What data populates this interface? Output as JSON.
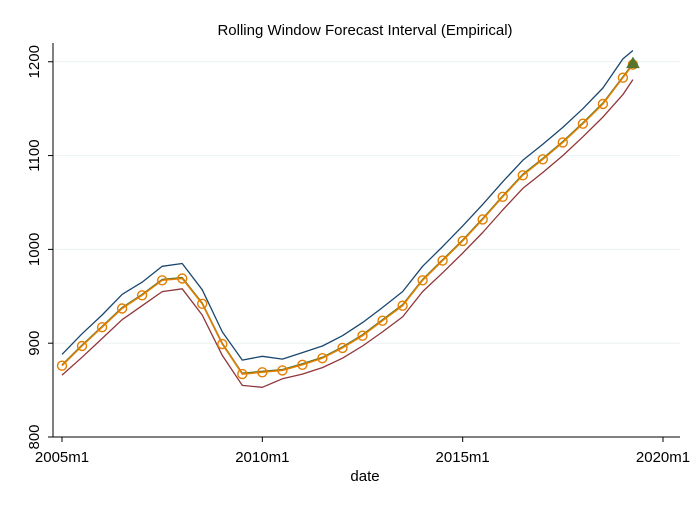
{
  "chart_data": {
    "type": "line",
    "title": "Rolling Window Forecast Interval (Empirical)",
    "xlabel": "date",
    "ylabel": "",
    "x_range": [
      "2005m1",
      "2020m1"
    ],
    "ylim": [
      800,
      1220
    ],
    "x_ticks": [
      "2005m1",
      "2010m1",
      "2015m1",
      "2020m1"
    ],
    "y_ticks": [
      800,
      900,
      1000,
      1100,
      1200
    ],
    "grid": "horizontal",
    "legend": "none",
    "colors": {
      "upper": "#1a476f",
      "lower": "#90353b",
      "actual": "#55752f",
      "forecast": "#e37e00",
      "forecast_marker_fill": "#f5c26b",
      "grid": "#eaf2f3"
    },
    "series": [
      {
        "role": "upper",
        "x": [
          "2005m1",
          "2005m7",
          "2006m1",
          "2006m7",
          "2007m1",
          "2007m7",
          "2008m1",
          "2008m7",
          "2009m1",
          "2009m7",
          "2010m1",
          "2010m7",
          "2011m1",
          "2011m7",
          "2012m1",
          "2012m7",
          "2013m1",
          "2013m7",
          "2014m1",
          "2014m7",
          "2015m1",
          "2015m7",
          "2016m1",
          "2016m7",
          "2017m1",
          "2017m7",
          "2018m1",
          "2018m7",
          "2019m1",
          "2019m4"
        ],
        "values": [
          888,
          910,
          930,
          952,
          965,
          982,
          985,
          957,
          912,
          882,
          886,
          883,
          890,
          897,
          908,
          922,
          938,
          955,
          982,
          1003,
          1025,
          1048,
          1072,
          1095,
          1112,
          1130,
          1150,
          1172,
          1203,
          1212
        ]
      },
      {
        "role": "lower",
        "x": [
          "2005m1",
          "2005m7",
          "2006m1",
          "2006m7",
          "2007m1",
          "2007m7",
          "2008m1",
          "2008m7",
          "2009m1",
          "2009m7",
          "2010m1",
          "2010m7",
          "2011m1",
          "2011m7",
          "2012m1",
          "2012m7",
          "2013m1",
          "2013m7",
          "2014m1",
          "2014m7",
          "2015m1",
          "2015m7",
          "2016m1",
          "2016m7",
          "2017m1",
          "2017m7",
          "2018m1",
          "2018m7",
          "2019m1",
          "2019m4"
        ],
        "values": [
          866,
          885,
          905,
          925,
          940,
          955,
          958,
          930,
          887,
          855,
          853,
          862,
          867,
          874,
          884,
          897,
          912,
          928,
          955,
          975,
          996,
          1018,
          1042,
          1065,
          1082,
          1100,
          1120,
          1141,
          1165,
          1181
        ]
      },
      {
        "role": "actual",
        "x": [
          "2005m1",
          "2005m7",
          "2006m1",
          "2006m7",
          "2007m1",
          "2007m7",
          "2008m1",
          "2008m7",
          "2009m1",
          "2009m7",
          "2010m1",
          "2010m7",
          "2011m1",
          "2011m7",
          "2012m1",
          "2012m7",
          "2013m1",
          "2013m7",
          "2014m1",
          "2014m7",
          "2015m1",
          "2015m7",
          "2016m1",
          "2016m7",
          "2017m1",
          "2017m7",
          "2018m1",
          "2018m7",
          "2019m1",
          "2019m4"
        ],
        "values": [
          877,
          898,
          918,
          938,
          952,
          968,
          970,
          943,
          900,
          868,
          870,
          872,
          878,
          885,
          896,
          909,
          925,
          941,
          968,
          989,
          1010,
          1033,
          1057,
          1080,
          1097,
          1115,
          1135,
          1156,
          1184,
          1198
        ]
      },
      {
        "role": "forecast",
        "x": [
          "2005m1",
          "2005m7",
          "2006m1",
          "2006m7",
          "2007m1",
          "2007m7",
          "2008m1",
          "2008m7",
          "2009m1",
          "2009m7",
          "2010m1",
          "2010m7",
          "2011m1",
          "2011m7",
          "2012m1",
          "2012m7",
          "2013m1",
          "2013m7",
          "2014m1",
          "2014m7",
          "2015m1",
          "2015m7",
          "2016m1",
          "2016m7",
          "2017m1",
          "2017m7",
          "2018m1",
          "2018m7",
          "2019m1",
          "2019m4"
        ],
        "values": [
          876,
          897,
          917,
          937,
          951,
          967,
          969,
          942,
          899,
          867,
          869,
          871,
          877,
          884,
          895,
          908,
          924,
          940,
          967,
          988,
          1009,
          1032,
          1056,
          1079,
          1096,
          1114,
          1134,
          1155,
          1183,
          1197
        ]
      }
    ]
  }
}
